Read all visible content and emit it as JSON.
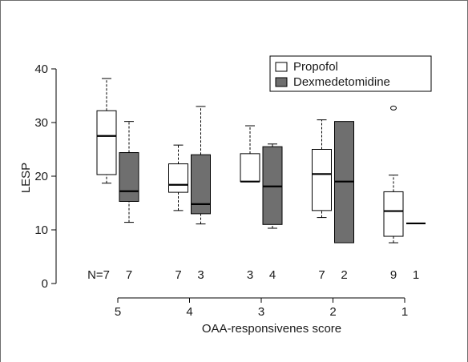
{
  "chart_data": {
    "type": "box",
    "xlabel": "OAA-responsivenes score",
    "ylabel": "LESP",
    "ylim": [
      0,
      40
    ],
    "yticks": [
      "0",
      "10",
      "20",
      "30",
      "40"
    ],
    "categories": [
      "5",
      "4",
      "3",
      "2",
      "1"
    ],
    "n_prefix": "N=",
    "legend": {
      "placement": "top-right",
      "entries": [
        {
          "name": "Propofol",
          "color": "#ffffff"
        },
        {
          "name": "Dexmedetomidine",
          "color": "#6f6f6f"
        }
      ]
    },
    "series": [
      {
        "name": "Propofol",
        "color": "#ffffff",
        "n": [
          "7",
          "7",
          "3",
          "7",
          "9"
        ],
        "boxes": [
          {
            "min": 18.7,
            "q1": 20.3,
            "median": 27.5,
            "q3": 32.2,
            "max": 38.2,
            "outliers": []
          },
          {
            "min": 13.6,
            "q1": 17.0,
            "median": 18.4,
            "q3": 22.3,
            "max": 25.8,
            "outliers": []
          },
          {
            "min": 19.0,
            "q1": 19.0,
            "median": 19.0,
            "q3": 24.2,
            "max": 29.4,
            "outliers": []
          },
          {
            "min": 12.3,
            "q1": 13.6,
            "median": 20.4,
            "q3": 25.0,
            "max": 30.5,
            "outliers": []
          },
          {
            "min": 7.6,
            "q1": 8.8,
            "median": 13.5,
            "q3": 17.1,
            "max": 20.2,
            "outliers": [
              32.7
            ]
          }
        ]
      },
      {
        "name": "Dexmedetomidine",
        "color": "#6f6f6f",
        "n": [
          "7",
          "3",
          "4",
          "2",
          "1"
        ],
        "boxes": [
          {
            "min": 11.4,
            "q1": 15.3,
            "median": 17.2,
            "q3": 24.4,
            "max": 30.2,
            "outliers": []
          },
          {
            "min": 11.1,
            "q1": 13.0,
            "median": 14.8,
            "q3": 24.0,
            "max": 33.0,
            "outliers": []
          },
          {
            "min": 10.3,
            "q1": 11.0,
            "median": 18.1,
            "q3": 25.5,
            "max": 26.0,
            "outliers": []
          },
          {
            "min": 7.6,
            "q1": 7.6,
            "median": 19.0,
            "q3": 30.2,
            "max": 30.2,
            "outliers": []
          },
          {
            "min": 11.2,
            "q1": 11.2,
            "median": 11.2,
            "q3": 11.2,
            "max": 11.2,
            "outliers": []
          }
        ]
      }
    ]
  }
}
